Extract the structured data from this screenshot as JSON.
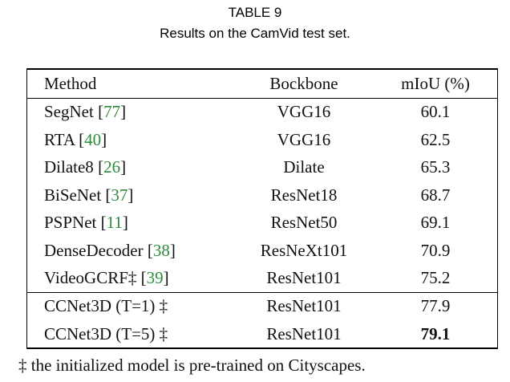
{
  "caption": {
    "label": "TABLE 9",
    "title": "Results on the CamVid test set."
  },
  "table": {
    "headers": [
      "Method",
      "Bockbone",
      "mIoU (%)"
    ],
    "rows": [
      {
        "method": "SegNet",
        "ref": "77",
        "dagger": "",
        "backbone": "VGG16",
        "miou": "60.1",
        "bold": false
      },
      {
        "method": "RTA",
        "ref": "40",
        "dagger": "",
        "backbone": "VGG16",
        "miou": "62.5",
        "bold": false
      },
      {
        "method": "Dilate8",
        "ref": "26",
        "dagger": "",
        "backbone": "Dilate",
        "miou": "65.3",
        "bold": false
      },
      {
        "method": "BiSeNet",
        "ref": "37",
        "dagger": "",
        "backbone": "ResNet18",
        "miou": "68.7",
        "bold": false
      },
      {
        "method": "PSPNet",
        "ref": "11",
        "dagger": "",
        "backbone": "ResNet50",
        "miou": "69.1",
        "bold": false
      },
      {
        "method": "DenseDecoder",
        "ref": "38",
        "dagger": "",
        "backbone": "ResNeXt101",
        "miou": "70.9",
        "bold": false
      },
      {
        "method": "VideoGCRF‡",
        "ref": "39",
        "dagger": "",
        "backbone": "ResNet101",
        "miou": "75.2",
        "bold": false
      },
      {
        "method": "CCNet3D (T=1) ‡",
        "ref": "",
        "dagger": "",
        "backbone": "ResNet101",
        "miou": "77.9",
        "bold": false
      },
      {
        "method": "CCNet3D (T=5) ‡",
        "ref": "",
        "dagger": "",
        "backbone": "ResNet101",
        "miou": "79.1",
        "bold": true
      }
    ]
  },
  "footnote": "‡ the initialized model is pre-trained on Cityscapes."
}
